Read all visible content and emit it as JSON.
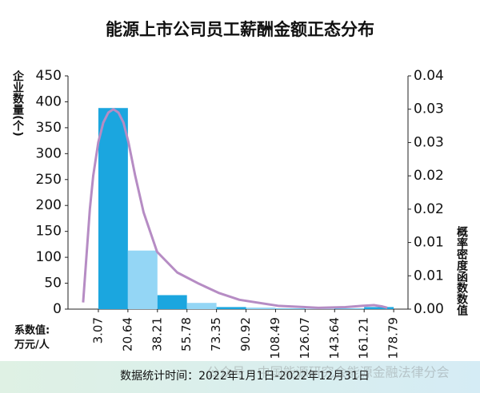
{
  "chart_data": {
    "type": "histogram",
    "title": "能源上市公司员工薪酬金额正态分布",
    "ylabel": "企业数量(个)",
    "y2label": "概率密度函数数值",
    "xlabel": [
      "系数值:",
      "万元/人"
    ],
    "note": "数据统计时间：2022年1月1日-2022年12月31日",
    "watermark": "公众号 · 中国能源研究会能源金融法律分会",
    "bins": [
      3.07,
      20.64,
      38.21,
      55.78,
      73.35,
      90.92,
      108.49,
      126.07,
      143.64,
      161.21,
      178.79
    ],
    "values": [
      388,
      113,
      27,
      12,
      4,
      3,
      1,
      1,
      1,
      4
    ],
    "colors": [
      "#1ba6df",
      "#94d6f5",
      "#1ba6df",
      "#94d6f5",
      "#1ba6df",
      "#94d6f5",
      "#1ba6df",
      "#94d6f5",
      "#1ba6df",
      "#1ba6df"
    ],
    "density": {
      "axis": "y2",
      "color": "#b68cc4",
      "x": [
        -6,
        -4,
        -2,
        0,
        3,
        6,
        9,
        12,
        15,
        18,
        21,
        25,
        30,
        38,
        50,
        63,
        75,
        87,
        110,
        134,
        150,
        160,
        167,
        172,
        175
      ],
      "values": [
        0.001,
        0.008,
        0.015,
        0.02,
        0.025,
        0.028,
        0.0295,
        0.03,
        0.0295,
        0.028,
        0.025,
        0.02,
        0.0145,
        0.0086,
        0.0055,
        0.0038,
        0.0024,
        0.0014,
        0.0005,
        0.0002,
        0.0003,
        0.0005,
        0.0006,
        0.0004,
        0.0002
      ]
    },
    "xlim": [
      -15,
      187.3
    ],
    "ylim": [
      0,
      450
    ],
    "yticks": [
      0,
      50,
      100,
      150,
      200,
      250,
      300,
      350,
      400,
      450
    ],
    "y2lim": [
      0,
      0.035
    ],
    "y2ticks": [
      {
        "value": 0,
        "label": "0.00"
      },
      {
        "value": 0.005,
        "label": "0.01"
      },
      {
        "value": 0.01,
        "label": "0.01"
      },
      {
        "value": 0.015,
        "label": "0.02"
      },
      {
        "value": 0.02,
        "label": "0.02"
      },
      {
        "value": 0.025,
        "label": "0.03"
      },
      {
        "value": 0.03,
        "label": "0.03"
      },
      {
        "value": 0.035,
        "label": "0.04"
      }
    ]
  }
}
